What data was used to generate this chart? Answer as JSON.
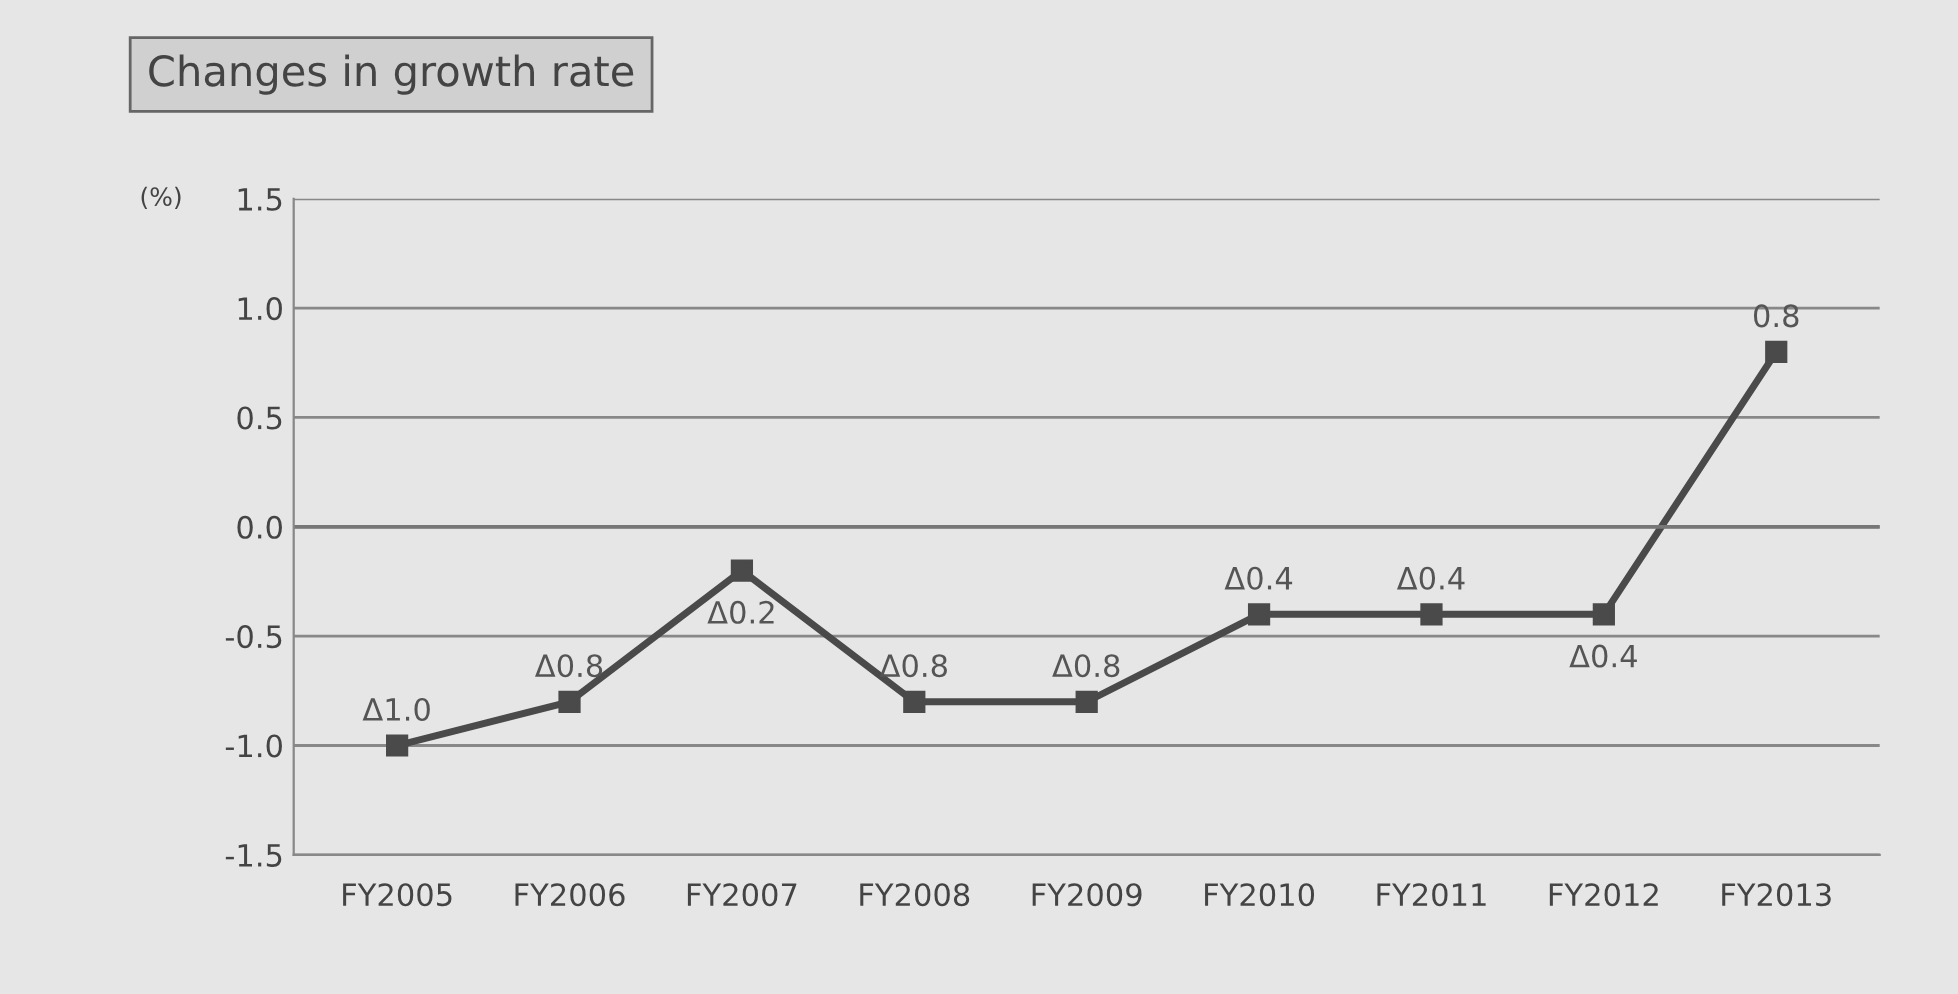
{
  "chart_data": {
    "type": "line",
    "title": "Changes in growth rate",
    "ylabel": "(%)",
    "categories": [
      "FY2005",
      "FY2006",
      "FY2007",
      "FY2008",
      "FY2009",
      "FY2010",
      "FY2011",
      "FY2012",
      "FY2013"
    ],
    "series": [
      {
        "color": "#4a4a4a",
        "values": [
          -1.0,
          -0.8,
          -0.2,
          -0.8,
          -0.8,
          -0.4,
          -0.4,
          -0.4,
          0.8
        ],
        "value_labels": [
          "Δ1.0",
          "Δ0.8",
          "Δ0.2",
          "Δ0.8",
          "Δ0.8",
          "Δ0.4",
          "Δ0.4",
          "Δ0.4",
          "0.8"
        ]
      }
    ],
    "ylim": [
      -1.5,
      1.5
    ],
    "yticks": [
      -1.5,
      {
        "value": -1,
        "label": "-1.0"
      },
      -0.5,
      {
        "value": 0,
        "label": "0.0"
      },
      0.5,
      {
        "value": 1,
        "label": "1.0"
      },
      1.5
    ],
    "grid": "y",
    "marker": "square",
    "line_style": "solid"
  }
}
